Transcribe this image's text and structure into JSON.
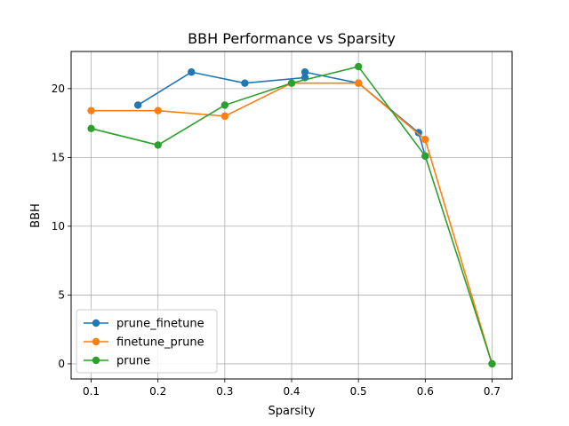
{
  "chart_data": {
    "type": "line",
    "title": "BBH Performance vs Sparsity",
    "xlabel": "Sparsity",
    "ylabel": "BBH",
    "xlim": [
      0.07,
      0.73
    ],
    "ylim": [
      -1.1,
      22.7
    ],
    "xticks": [
      "0.1",
      "0.2",
      "0.3",
      "0.4",
      "0.5",
      "0.6",
      "0.7"
    ],
    "yticks": [
      "0",
      "5",
      "10",
      "15",
      "20"
    ],
    "grid": true,
    "legend_position": "lower-left",
    "series": [
      {
        "name": "prune_finetune",
        "color": "#1f77b4",
        "x": [
          0.17,
          0.25,
          0.33,
          0.42,
          0.42,
          0.5,
          0.59,
          0.6
        ],
        "y": [
          18.8,
          21.2,
          20.4,
          20.8,
          21.2,
          20.4,
          16.8,
          15.1
        ]
      },
      {
        "name": "finetune_prune",
        "color": "#ff7f0e",
        "x": [
          0.1,
          0.2,
          0.3,
          0.4,
          0.5,
          0.6,
          0.7
        ],
        "y": [
          18.4,
          18.4,
          18.0,
          20.4,
          20.4,
          16.3,
          0.0
        ]
      },
      {
        "name": "prune",
        "color": "#2ca02c",
        "x": [
          0.1,
          0.2,
          0.3,
          0.4,
          0.5,
          0.6,
          0.7
        ],
        "y": [
          17.1,
          15.9,
          18.8,
          20.4,
          21.6,
          15.1,
          0.0
        ]
      }
    ]
  }
}
